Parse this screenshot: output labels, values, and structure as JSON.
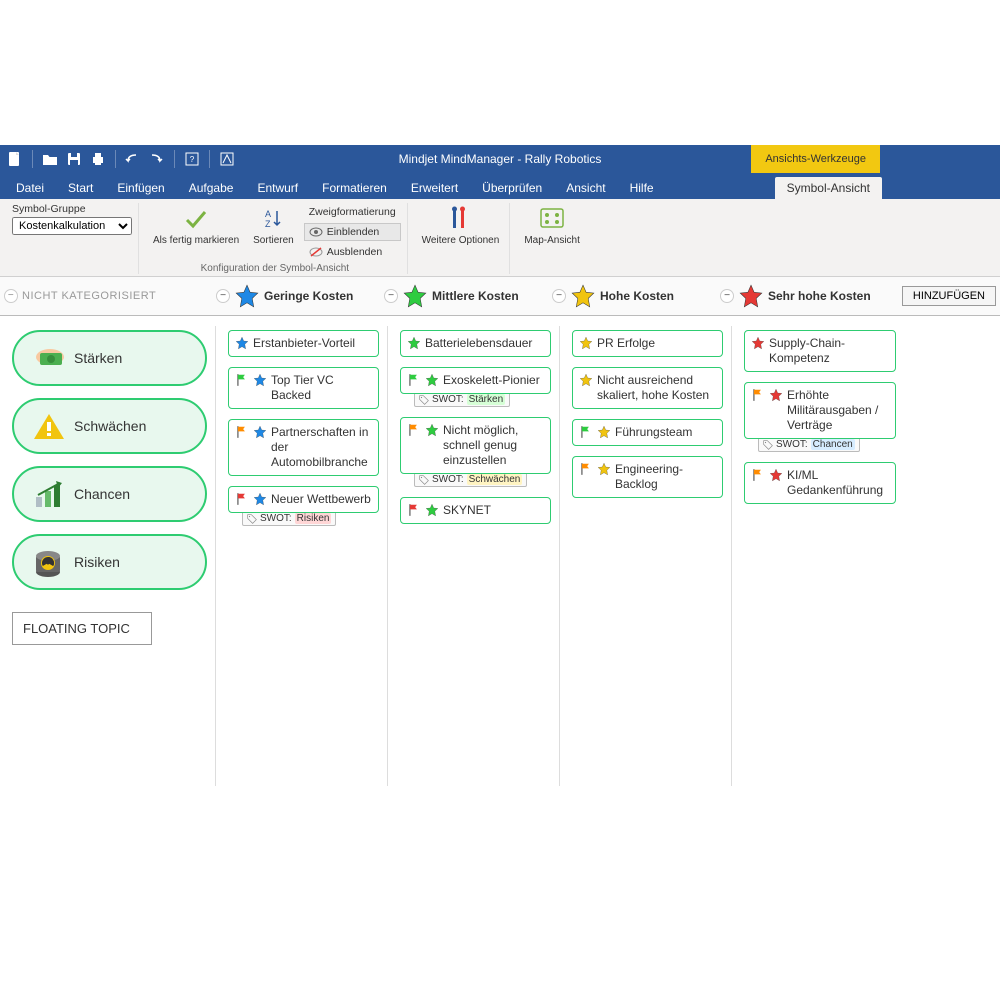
{
  "colors": {
    "ribbon_blue": "#2b579a",
    "context_yellow": "#f2c811",
    "card_border": "#2ecc71",
    "star_blue": "#1e88e5",
    "star_green": "#2ecc40",
    "star_yellow": "#f1c40f",
    "star_red": "#e53935",
    "flag_green": "#2ecc40",
    "flag_orange": "#ff8c00",
    "flag_red": "#e53935",
    "tag_red_bg": "#ffd6d6",
    "tag_green_bg": "#d6ffd6",
    "tag_yellow_bg": "#fff4c2",
    "tag_blue_bg": "#d6ecff"
  },
  "titlebar": {
    "title": "Mindjet MindManager - Rally Robotics",
    "context_tab": "Ansichts-Werkzeuge"
  },
  "tabs": {
    "items": [
      "Datei",
      "Start",
      "Einfügen",
      "Aufgabe",
      "Entwurf",
      "Formatieren",
      "Erweitert",
      "Überprüfen",
      "Ansicht",
      "Hilfe"
    ],
    "context": "Symbol-Ansicht"
  },
  "ribbon": {
    "symbol_group_label": "Symbol-Gruppe",
    "symbol_group_value": "Kostenkalkulation",
    "mark_done": "Als fertig markieren",
    "sort": "Sortieren",
    "branch_format": "Zweigformatierung",
    "show": "Einblenden",
    "hide": "Ausblenden",
    "config_label": "Konfiguration der Symbol-Ansicht",
    "more_options": "Weitere Optionen",
    "map_view": "Map-Ansicht"
  },
  "headers": {
    "uncategorized": "Nicht kategorisiert",
    "add": "HINZUFÜGEN",
    "cols": [
      {
        "label": "Geringe Kosten",
        "star": "#1e88e5"
      },
      {
        "label": "Mittlere Kosten",
        "star": "#2ecc40"
      },
      {
        "label": "Hohe Kosten",
        "star": "#f1c40f"
      },
      {
        "label": "Sehr hohe Kosten",
        "star": "#e53935"
      }
    ]
  },
  "categories": [
    {
      "label": "Stärken",
      "icon": "money"
    },
    {
      "label": "Schwächen",
      "icon": "warn"
    },
    {
      "label": "Chancen",
      "icon": "growth"
    },
    {
      "label": "Risiken",
      "icon": "hazard"
    }
  ],
  "floating": "FLOATING TOPIC",
  "cols": {
    "c1": [
      {
        "text": "Erstanbieter-Vorteil",
        "star": "#1e88e5"
      },
      {
        "text": "Top Tier VC Backed",
        "star": "#1e88e5",
        "flag": "#2ecc40"
      },
      {
        "text": "Partnerschaften in der Automobilbranche",
        "star": "#1e88e5",
        "flag": "#ff8c00"
      },
      {
        "text": "Neuer Wettbewerb",
        "star": "#1e88e5",
        "flag": "#e53935",
        "tag": "SWOT:",
        "tag2": "Risiken",
        "tag_bg": "#ffd6d6"
      }
    ],
    "c2": [
      {
        "text": "Batterielebensdauer",
        "star": "#2ecc40"
      },
      {
        "text": "Exoskelett-Pionier",
        "star": "#2ecc40",
        "flag": "#2ecc40",
        "tag": "SWOT:",
        "tag2": "Stärken",
        "tag_bg": "#d6ffd6"
      },
      {
        "text": "Nicht möglich, schnell genug einzustellen",
        "star": "#2ecc40",
        "flag": "#ff8c00",
        "tag": "SWOT:",
        "tag2": "Schwächen",
        "tag_bg": "#fff4c2"
      },
      {
        "text": "SKYNET",
        "star": "#2ecc40",
        "flag": "#e53935"
      }
    ],
    "c3": [
      {
        "text": "PR Erfolge",
        "star": "#f1c40f"
      },
      {
        "text": "Nicht ausreichend skaliert, hohe Kosten",
        "star": "#f1c40f"
      },
      {
        "text": "Führungsteam",
        "star": "#f1c40f",
        "flag": "#2ecc40"
      },
      {
        "text": "Engineering-Backlog",
        "star": "#f1c40f",
        "flag": "#ff8c00"
      }
    ],
    "c4": [
      {
        "text": "Supply-Chain-Kompetenz",
        "star": "#e53935"
      },
      {
        "text": "Erhöhte Militärausgaben / Verträge",
        "star": "#e53935",
        "flag": "#ff8c00",
        "tag": "SWOT:",
        "tag2": "Chancen",
        "tag_bg": "#d6ecff"
      },
      {
        "text": "KI/ML Gedankenführung",
        "star": "#e53935",
        "flag": "#ff8c00"
      }
    ]
  }
}
